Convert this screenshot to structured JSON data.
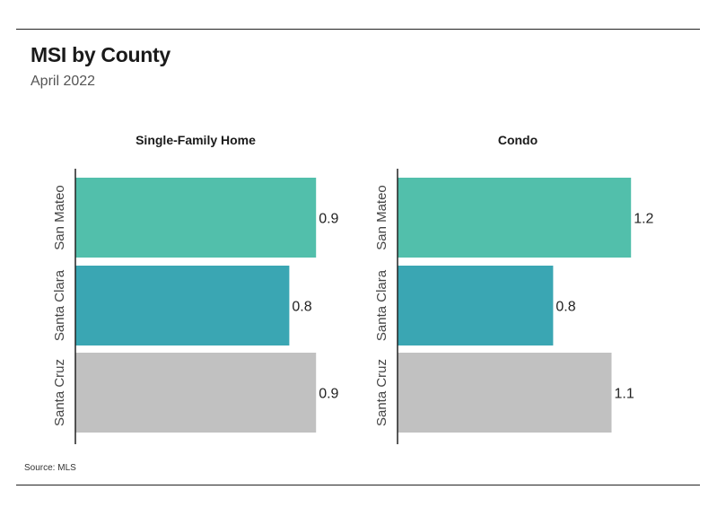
{
  "header": {
    "title": "MSI by County",
    "subtitle": "April 2022"
  },
  "footer": {
    "source": "Source:  MLS"
  },
  "colors": {
    "San Mateo": "#52bfab",
    "Santa Clara": "#3aa6b3",
    "Santa Cruz": "#c1c1c1"
  },
  "chart_data": [
    {
      "type": "bar",
      "orientation": "horizontal",
      "title": "Single-Family Home",
      "categories": [
        "San Mateo",
        "Santa Clara",
        "Santa Cruz"
      ],
      "values": [
        0.9,
        0.8,
        0.9
      ],
      "value_labels": [
        "0.9",
        "0.8",
        "0.9"
      ],
      "xlim": [
        0,
        1.0
      ],
      "grid": false
    },
    {
      "type": "bar",
      "orientation": "horizontal",
      "title": "Condo",
      "categories": [
        "San Mateo",
        "Santa Clara",
        "Santa Cruz"
      ],
      "values": [
        1.2,
        0.8,
        1.1
      ],
      "value_labels": [
        "1.2",
        "0.8",
        "1.1"
      ],
      "xlim": [
        0,
        1.25
      ],
      "grid": false
    }
  ]
}
